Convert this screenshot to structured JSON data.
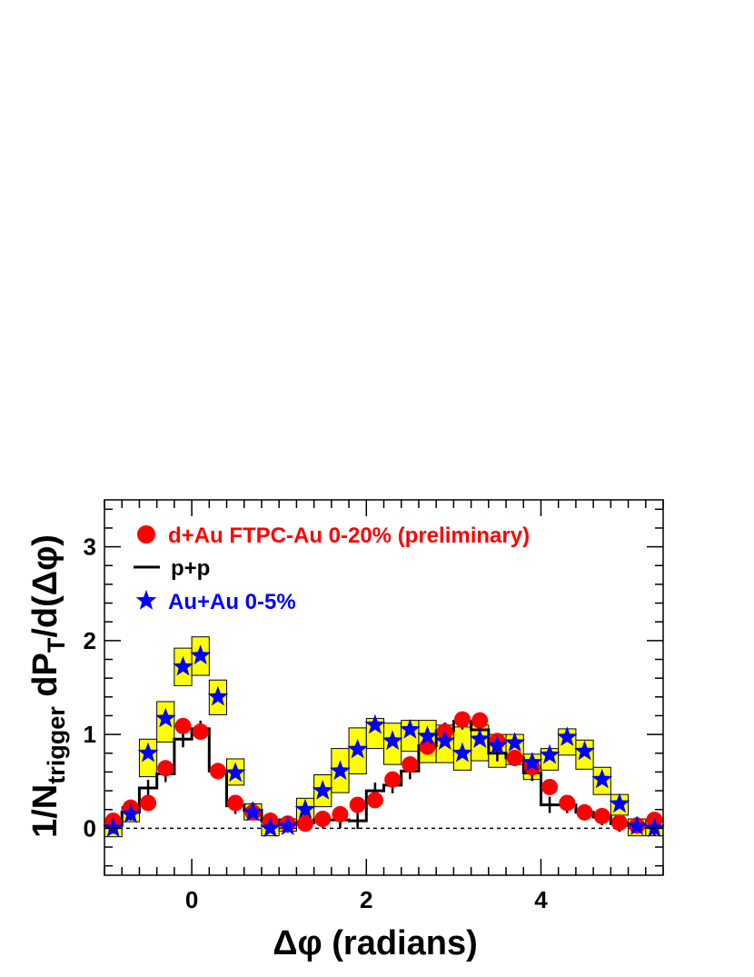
{
  "chart_data": {
    "type": "line",
    "xlabel": "Δφ (radians)",
    "ylabel": {
      "prefix": "1/N",
      "subscript": "trigger",
      "middle": " dP",
      "subscript2": "T",
      "suffix": "/d(Δφ)"
    },
    "xlim": [
      -1.0,
      5.4
    ],
    "ylim": [
      -0.5,
      3.5
    ],
    "x_ticks": [
      0,
      2,
      4
    ],
    "y_ticks": [
      0,
      1,
      2,
      3
    ],
    "grid": false,
    "legend_position": "top-left",
    "reference_line": 0,
    "bin_edges": [
      -1.0,
      -0.8,
      -0.6,
      -0.4,
      -0.2,
      0.0,
      0.2,
      0.4,
      0.6,
      0.8,
      1.0,
      1.2,
      1.4,
      1.6,
      1.8,
      2.0,
      2.2,
      2.4,
      2.6,
      2.8,
      3.0,
      3.2,
      3.4,
      3.6,
      3.8,
      4.0,
      4.2,
      4.4,
      4.6,
      4.8,
      5.0,
      5.2,
      5.4
    ],
    "series": [
      {
        "name": "d+Au FTPC-Au 0-20% (preliminary)",
        "marker": "circle",
        "color": "#ff0000",
        "x": [
          -0.9,
          -0.7,
          -0.5,
          -0.3,
          -0.1,
          0.1,
          0.3,
          0.5,
          0.7,
          0.9,
          1.1,
          1.3,
          1.5,
          1.7,
          1.9,
          2.1,
          2.3,
          2.5,
          2.7,
          2.9,
          3.1,
          3.3,
          3.5,
          3.7,
          3.9,
          4.1,
          4.3,
          4.5,
          4.7,
          4.9,
          5.1,
          5.3
        ],
        "y": [
          0.08,
          0.22,
          0.27,
          0.64,
          1.09,
          1.03,
          0.61,
          0.27,
          0.17,
          0.08,
          0.05,
          0.05,
          0.1,
          0.15,
          0.25,
          0.3,
          0.52,
          0.68,
          0.87,
          1.03,
          1.16,
          1.15,
          0.93,
          0.75,
          0.65,
          0.44,
          0.27,
          0.17,
          0.13,
          0.06,
          0.03,
          0.09
        ]
      },
      {
        "name": "p+p",
        "marker": "step",
        "color": "#000000",
        "x": [
          -0.9,
          -0.7,
          -0.5,
          -0.3,
          -0.1,
          0.1,
          0.3,
          0.5,
          0.7,
          0.9,
          1.1,
          1.3,
          1.5,
          1.7,
          1.9,
          2.1,
          2.3,
          2.5,
          2.7,
          2.9,
          3.1,
          3.3,
          3.5,
          3.7,
          3.9,
          4.1,
          4.3,
          4.5,
          4.7,
          4.9,
          5.1,
          5.3
        ],
        "y": [
          0.03,
          0.17,
          0.43,
          0.58,
          0.95,
          1.06,
          0.61,
          0.24,
          0.19,
          0.08,
          0.04,
          0.06,
          0.09,
          0.09,
          0.08,
          0.4,
          0.46,
          0.61,
          0.88,
          1.04,
          1.14,
          1.05,
          0.8,
          0.75,
          0.59,
          0.25,
          0.25,
          0.17,
          0.12,
          0.05,
          0.03,
          0.01
        ]
      },
      {
        "name": "Au+Au 0-5%",
        "marker": "star",
        "color": "#0000ff",
        "x": [
          -0.9,
          -0.7,
          -0.5,
          -0.3,
          -0.1,
          0.1,
          0.3,
          0.5,
          0.7,
          0.9,
          1.1,
          1.3,
          1.5,
          1.7,
          1.9,
          2.1,
          2.3,
          2.5,
          2.7,
          2.9,
          3.1,
          3.3,
          3.5,
          3.7,
          3.9,
          4.1,
          4.3,
          4.5,
          4.7,
          4.9,
          5.1,
          5.3
        ],
        "y": [
          0.0,
          0.15,
          0.8,
          1.17,
          1.72,
          1.84,
          1.4,
          0.59,
          0.17,
          0.0,
          0.02,
          0.2,
          0.4,
          0.61,
          0.84,
          1.1,
          0.93,
          1.05,
          0.98,
          0.93,
          0.8,
          0.95,
          0.88,
          0.91,
          0.7,
          0.78,
          0.97,
          0.82,
          0.52,
          0.26,
          0.02,
          0.0
        ],
        "sys_low": [
          -0.09,
          0.07,
          0.55,
          0.92,
          1.52,
          1.63,
          1.21,
          0.46,
          0.09,
          -0.08,
          -0.03,
          0.08,
          0.23,
          0.38,
          0.58,
          0.85,
          0.68,
          0.82,
          0.7,
          0.7,
          0.62,
          0.72,
          0.65,
          0.68,
          0.52,
          0.62,
          0.78,
          0.63,
          0.36,
          0.14,
          -0.08,
          -0.08
        ],
        "sys_high": [
          0.08,
          0.23,
          0.95,
          1.35,
          1.92,
          2.04,
          1.58,
          0.74,
          0.26,
          0.08,
          0.1,
          0.32,
          0.57,
          0.85,
          1.07,
          1.17,
          1.12,
          1.15,
          1.15,
          1.1,
          1.08,
          1.1,
          1.0,
          1.0,
          0.79,
          0.85,
          1.06,
          0.94,
          0.65,
          0.36,
          0.1,
          0.08
        ],
        "sys_color": "#ffff00"
      }
    ]
  }
}
